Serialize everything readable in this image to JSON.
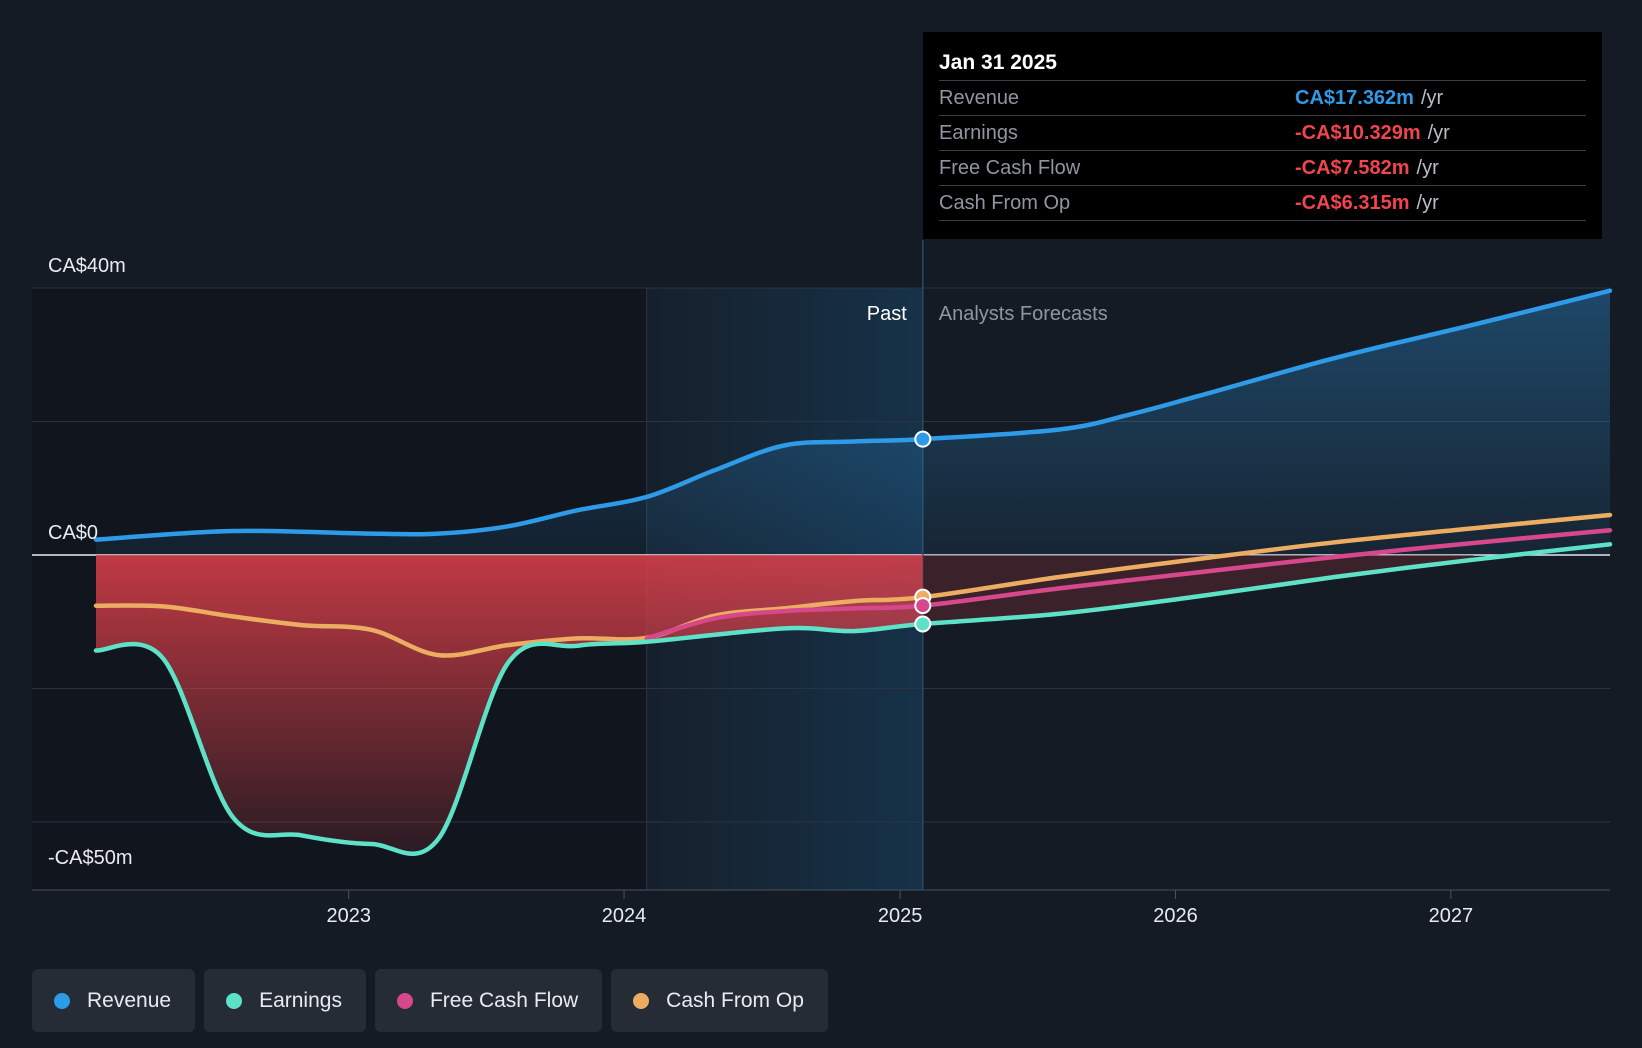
{
  "colors": {
    "background": "#151b24",
    "revenue": "#2e9be8",
    "earnings": "#5de2c8",
    "free_cash_flow": "#d7478b",
    "cash_from_op": "#ecad62",
    "negative": "#f0444e"
  },
  "tooltip": {
    "date": "Jan 31 2025",
    "rows": [
      {
        "label": "Revenue",
        "value": "CA$17.362m",
        "unit": "/yr"
      },
      {
        "label": "Earnings",
        "value": "-CA$10.329m",
        "unit": "/yr"
      },
      {
        "label": "Free Cash Flow",
        "value": "-CA$7.582m",
        "unit": "/yr"
      },
      {
        "label": "Cash From Op",
        "value": "-CA$6.315m",
        "unit": "/yr"
      }
    ]
  },
  "legend": [
    {
      "label": "Revenue"
    },
    {
      "label": "Earnings"
    },
    {
      "label": "Free Cash Flow"
    },
    {
      "label": "Cash From Op"
    }
  ],
  "chart_data": {
    "type": "line",
    "y_labels": [
      {
        "value": 40,
        "text": "CA$40m"
      },
      {
        "value": 0,
        "text": "CA$0"
      },
      {
        "value": -50,
        "text": "-CA$50m"
      }
    ],
    "ylim": [
      -50,
      40
    ],
    "x_ticks": [
      "2023",
      "2024",
      "2025",
      "2026",
      "2027"
    ],
    "xlim": [
      "2022-01-31",
      "2027-07-31"
    ],
    "grid": true,
    "past_label": "Past",
    "forecast_label": "Analysts Forecasts",
    "cursor_date": "2025-01-31",
    "past_band_start": "2024-01-31",
    "series": [
      {
        "name": "Revenue",
        "key": "revenue",
        "points": [
          [
            "2022-01-31",
            2.3
          ],
          [
            "2022-07-31",
            3.6
          ],
          [
            "2023-01-31",
            3.2
          ],
          [
            "2023-04-30",
            3.2
          ],
          [
            "2023-07-31",
            4.3
          ],
          [
            "2023-10-31",
            6.7
          ],
          [
            "2024-01-31",
            8.7
          ],
          [
            "2024-04-30",
            12.7
          ],
          [
            "2024-07-31",
            16.4
          ],
          [
            "2024-10-31",
            17.0
          ],
          [
            "2025-01-31",
            17.36
          ],
          [
            "2025-07-31",
            18.8
          ],
          [
            "2025-10-31",
            21.0
          ],
          [
            "2026-01-31",
            23.8
          ],
          [
            "2026-07-31",
            29.5
          ],
          [
            "2027-01-31",
            34.5
          ],
          [
            "2027-07-31",
            39.6
          ]
        ]
      },
      {
        "name": "Earnings",
        "key": "earnings",
        "points": [
          [
            "2022-01-31",
            -14.3
          ],
          [
            "2022-04-30",
            -15.5
          ],
          [
            "2022-07-31",
            -39.2
          ],
          [
            "2022-10-31",
            -42.0
          ],
          [
            "2023-01-31",
            -43.3
          ],
          [
            "2023-04-30",
            -42.5
          ],
          [
            "2023-07-31",
            -16.2
          ],
          [
            "2023-10-31",
            -13.6
          ],
          [
            "2024-01-31",
            -13.0
          ],
          [
            "2024-07-31",
            -11.0
          ],
          [
            "2024-10-31",
            -11.4
          ],
          [
            "2025-01-31",
            -10.33
          ],
          [
            "2025-07-31",
            -8.8
          ],
          [
            "2026-01-31",
            -6.2
          ],
          [
            "2026-07-31",
            -3.3
          ],
          [
            "2027-01-31",
            -0.7
          ],
          [
            "2027-07-31",
            1.6
          ]
        ]
      },
      {
        "name": "Free Cash Flow",
        "key": "free_cash_flow",
        "points": [
          [
            "2024-01-31",
            -12.5
          ],
          [
            "2024-04-30",
            -9.5
          ],
          [
            "2024-07-31",
            -8.4
          ],
          [
            "2024-10-31",
            -8.0
          ],
          [
            "2025-01-31",
            -7.58
          ],
          [
            "2025-07-31",
            -5.0
          ],
          [
            "2026-01-31",
            -2.6
          ],
          [
            "2026-07-31",
            -0.3
          ],
          [
            "2027-01-31",
            1.8
          ],
          [
            "2027-07-31",
            3.7
          ]
        ]
      },
      {
        "name": "Cash From Op",
        "key": "cash_from_op",
        "points": [
          [
            "2022-01-31",
            -7.6
          ],
          [
            "2022-04-30",
            -7.7
          ],
          [
            "2022-07-31",
            -9.2
          ],
          [
            "2022-10-31",
            -10.5
          ],
          [
            "2023-01-31",
            -11.2
          ],
          [
            "2023-04-30",
            -15.0
          ],
          [
            "2023-07-31",
            -13.5
          ],
          [
            "2023-10-31",
            -12.5
          ],
          [
            "2024-01-31",
            -12.4
          ],
          [
            "2024-04-30",
            -9.1
          ],
          [
            "2024-07-31",
            -8.0
          ],
          [
            "2024-10-31",
            -6.9
          ],
          [
            "2025-01-31",
            -6.32
          ],
          [
            "2025-07-31",
            -3.3
          ],
          [
            "2026-01-31",
            -0.6
          ],
          [
            "2026-07-31",
            1.9
          ],
          [
            "2027-01-31",
            4.0
          ],
          [
            "2027-07-31",
            6.0
          ]
        ]
      }
    ]
  }
}
